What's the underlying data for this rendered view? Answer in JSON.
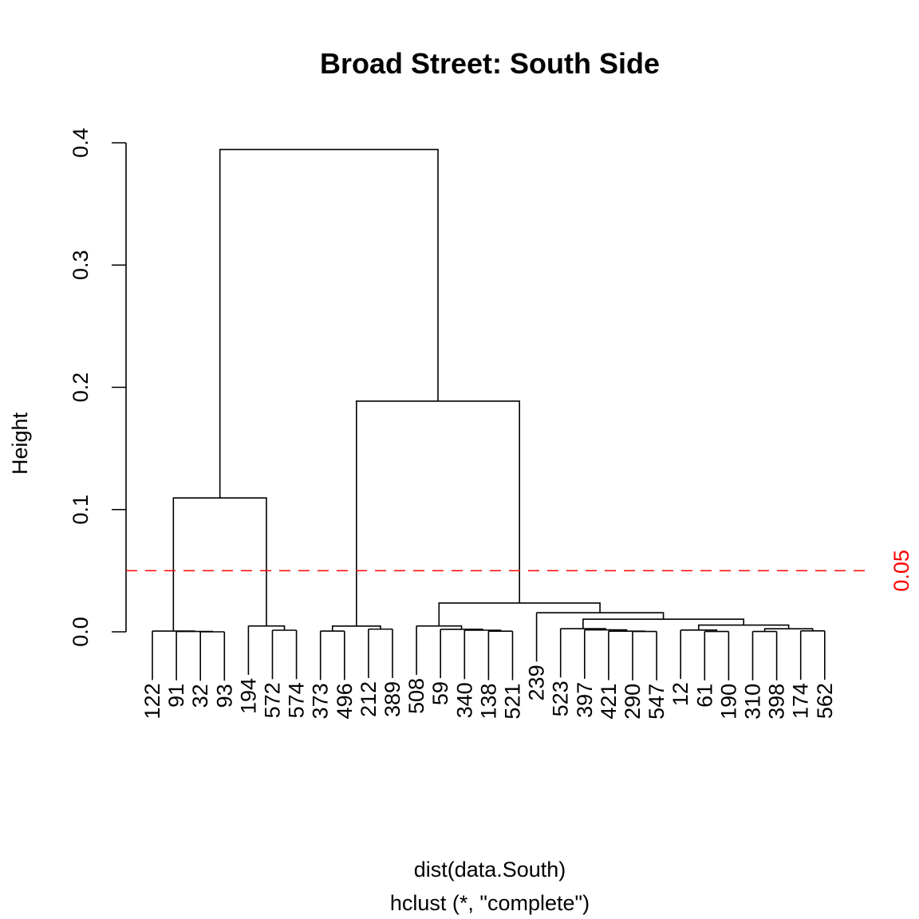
{
  "chart_data": {
    "type": "dendrogram",
    "title": "Broad Street: South Side",
    "xlabel": "dist(data.South)",
    "sublabel": "hclust (*, \"complete\")",
    "ylabel": "Height",
    "ylim": [
      0,
      0.4
    ],
    "yticks": [
      "0.0",
      "0.1",
      "0.2",
      "0.3",
      "0.4"
    ],
    "ytick_values": [
      0,
      0.1,
      0.2,
      0.3,
      0.4
    ],
    "cut": {
      "value": 0.05,
      "label": "0.05",
      "color": "#ff0000"
    },
    "leaves": [
      "122",
      "91",
      "32",
      "93",
      "194",
      "572",
      "574",
      "373",
      "496",
      "212",
      "389",
      "508",
      "59",
      "340",
      "138",
      "521",
      "239",
      "523",
      "397",
      "421",
      "290",
      "547",
      "12",
      "61",
      "190",
      "310",
      "398",
      "174",
      "562"
    ],
    "merges": [
      {
        "a": "L2",
        "b": "L3",
        "h": 0.0
      },
      {
        "a": "L1",
        "b": "M0",
        "h": 0.0003
      },
      {
        "a": "L0",
        "b": "M1",
        "h": 0.0006
      },
      {
        "a": "L5",
        "b": "L6",
        "h": 0.0013
      },
      {
        "a": "L4",
        "b": "M3",
        "h": 0.0048
      },
      {
        "a": "M2",
        "b": "M4",
        "h": 0.1095
      },
      {
        "a": "L7",
        "b": "L8",
        "h": 0.0006
      },
      {
        "a": "L9",
        "b": "L10",
        "h": 0.0022
      },
      {
        "a": "M6",
        "b": "M7",
        "h": 0.0047
      },
      {
        "a": "L14",
        "b": "L15",
        "h": 0.0005
      },
      {
        "a": "L13",
        "b": "M9",
        "h": 0.0013
      },
      {
        "a": "L12",
        "b": "M10",
        "h": 0.0021
      },
      {
        "a": "L11",
        "b": "M11",
        "h": 0.0048
      },
      {
        "a": "L20",
        "b": "L21",
        "h": 0.0003
      },
      {
        "a": "L19",
        "b": "M13",
        "h": 0.0005
      },
      {
        "a": "L18",
        "b": "M14",
        "h": 0.0016
      },
      {
        "a": "L17",
        "b": "M15",
        "h": 0.0026
      },
      {
        "a": "L23",
        "b": "L24",
        "h": 0.0003
      },
      {
        "a": "L22",
        "b": "M17",
        "h": 0.0014
      },
      {
        "a": "L25",
        "b": "L26",
        "h": 0.0003
      },
      {
        "a": "L27",
        "b": "L28",
        "h": 0.0008
      },
      {
        "a": "M19",
        "b": "M20",
        "h": 0.0025
      },
      {
        "a": "M18",
        "b": "M21",
        "h": 0.0055
      },
      {
        "a": "M16",
        "b": "M22",
        "h": 0.0103
      },
      {
        "a": "L16",
        "b": "M23",
        "h": 0.0156
      },
      {
        "a": "M12",
        "b": "M24",
        "h": 0.0235
      },
      {
        "a": "M8",
        "b": "M25",
        "h": 0.1887
      },
      {
        "a": "M5",
        "b": "M26",
        "h": 0.3945
      }
    ]
  }
}
